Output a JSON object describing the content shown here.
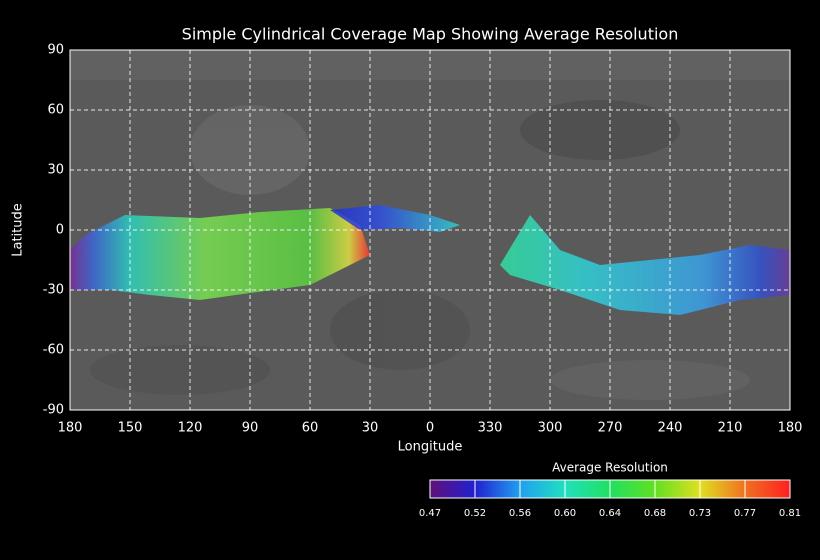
{
  "map": {
    "title": "Simple Cylindrical Coverage Map Showing Average Resolution",
    "x_label": "Longitude",
    "y_label": "Latitude",
    "lon_ticks": [
      180,
      150,
      120,
      90,
      60,
      30,
      0,
      330,
      300,
      270,
      240,
      210,
      180
    ],
    "lat_ticks": [
      90,
      60,
      30,
      0,
      -30,
      -60,
      -90
    ],
    "colorbar": {
      "title": "Average Resolution",
      "ticks": [
        0.47,
        0.52,
        0.56,
        {
          "value": 0.6,
          "label": "0.60"
        },
        0.64,
        0.68,
        0.73,
        0.77,
        0.81
      ]
    }
  }
}
